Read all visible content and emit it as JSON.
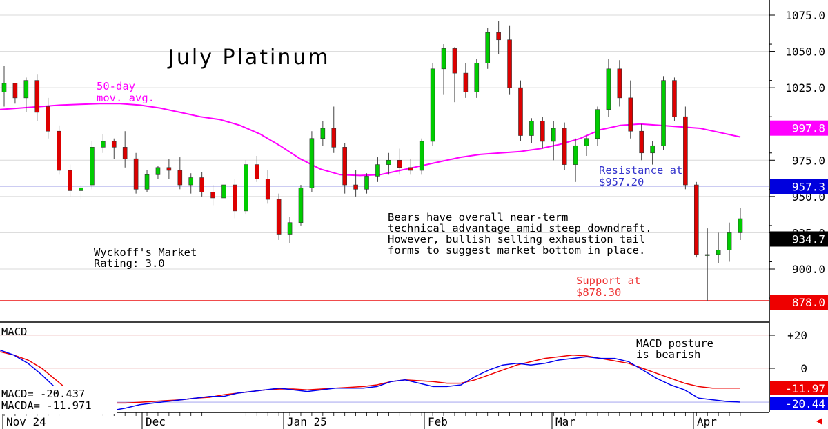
{
  "chart_data": [
    {
      "type": "candlestick",
      "title": "July Platinum",
      "y_axis": {
        "ticks": [
          "1075.0",
          "1050.0",
          "1025.0",
          "975.0",
          "950.0",
          "925.0",
          "900.0"
        ],
        "range": [
          870,
          1082
        ]
      },
      "x_axis": {
        "labels": [
          "Nov 24",
          "Dec",
          "Jan 25",
          "Feb",
          "Mar",
          "Apr"
        ]
      },
      "series": [
        {
          "name": "50-day mov. avg.",
          "color": "#ff00ff",
          "values": [
            1010,
            1011,
            1012,
            1013,
            1013.5,
            1014,
            1014,
            1013,
            1011,
            1008,
            1005,
            1003,
            999,
            993,
            985,
            976,
            969,
            965,
            964.5,
            965,
            968,
            971,
            974,
            977,
            979,
            980,
            981,
            983,
            986,
            990,
            996,
            999,
            1000,
            999,
            998,
            997,
            994,
            991
          ]
        },
        {
          "name": "candles",
          "color_up": "#00cc00",
          "color_down": "#dd0000",
          "candles": [
            [
              1022,
              1040,
              1012,
              1028
            ],
            [
              1028,
              1026,
              1014,
              1018
            ],
            [
              1018,
              1032,
              1008,
              1030
            ],
            [
              1030,
              1034,
              1002,
              1008
            ],
            [
              1012,
              1018,
              990,
              995
            ],
            [
              995,
              999,
              965,
              968
            ],
            [
              968,
              972,
              950,
              954
            ],
            [
              954,
              958,
              948,
              956
            ],
            [
              958,
              988,
              955,
              984
            ],
            [
              984,
              993,
              980,
              988
            ],
            [
              988,
              990,
              976,
              984
            ],
            [
              984,
              995,
              970,
              976
            ],
            [
              976,
              980,
              952,
              955
            ],
            [
              955,
              968,
              953,
              965
            ],
            [
              965,
              971,
              962,
              970
            ],
            [
              970,
              976,
              962,
              968
            ],
            [
              968,
              977,
              955,
              958
            ],
            [
              958,
              966,
              952,
              963
            ],
            [
              963,
              967,
              950,
              953
            ],
            [
              953,
              958,
              944,
              949
            ],
            [
              949,
              960,
              940,
              958
            ],
            [
              958,
              962,
              935,
              940
            ],
            [
              940,
              975,
              938,
              972
            ],
            [
              972,
              978,
              960,
              962
            ],
            [
              962,
              968,
              945,
              948
            ],
            [
              948,
              952,
              920,
              924
            ],
            [
              924,
              936,
              918,
              932
            ],
            [
              932,
              958,
              930,
              956
            ],
            [
              956,
              995,
              953,
              990
            ],
            [
              990,
              1002,
              985,
              997
            ],
            [
              997,
              1012,
              980,
              984
            ],
            [
              984,
              987,
              952,
              958
            ],
            [
              958,
              968,
              950,
              955
            ],
            [
              955,
              966,
              952,
              964
            ],
            [
              964,
              977,
              960,
              972
            ],
            [
              972,
              980,
              965,
              975
            ],
            [
              975,
              983,
              965,
              970
            ],
            [
              970,
              976,
              965,
              968
            ],
            [
              968,
              990,
              965,
              988
            ],
            [
              988,
              1042,
              985,
              1038
            ],
            [
              1038,
              1055,
              1020,
              1052
            ],
            [
              1052,
              1053,
              1015,
              1035
            ],
            [
              1035,
              1042,
              1018,
              1022
            ],
            [
              1022,
              1045,
              1018,
              1042
            ],
            [
              1042,
              1066,
              1038,
              1063
            ],
            [
              1063,
              1071,
              1048,
              1058
            ],
            [
              1058,
              1068,
              1020,
              1025
            ],
            [
              1025,
              1030,
              988,
              992
            ],
            [
              992,
              1004,
              987,
              1002
            ],
            [
              1002,
              1005,
              983,
              988
            ],
            [
              988,
              1002,
              975,
              997
            ],
            [
              997,
              1001,
              968,
              972
            ],
            [
              972,
              990,
              960,
              985
            ],
            [
              985,
              992,
              978,
              990
            ],
            [
              990,
              1012,
              985,
              1010
            ],
            [
              1010,
              1045,
              1005,
              1038
            ],
            [
              1038,
              1044,
              1012,
              1018
            ],
            [
              1018,
              1030,
              990,
              995
            ],
            [
              995,
              1000,
              975,
              980
            ],
            [
              980,
              988,
              972,
              985
            ],
            [
              985,
              1033,
              982,
              1030
            ],
            [
              1030,
              1032,
              1002,
              1005
            ],
            [
              1005,
              1012,
              955,
              958
            ],
            [
              958,
              960,
              908,
              910
            ],
            [
              910,
              928,
              878,
              910
            ],
            [
              910,
              925,
              904,
              913
            ],
            [
              913,
              932,
              905,
              925
            ],
            [
              925,
              942,
              920,
              934.7
            ]
          ]
        }
      ],
      "current_values": [
        {
          "label": "997.8",
          "color": "#ff00ff"
        },
        {
          "label": "957.3",
          "color": "#0000dd"
        },
        {
          "label": "934.7",
          "color": "#000000"
        },
        {
          "label": "878.0",
          "color": "#ee0000"
        }
      ],
      "levels": [
        {
          "name": "Resistance",
          "value": 957.2,
          "color": "#3333cc"
        },
        {
          "name": "Support",
          "value": 878.3,
          "color": "#ee3333"
        }
      ],
      "annotations": {
        "ma_label": [
          "50-day",
          "mov. avg."
        ],
        "resistance_label": [
          "Resistance at",
          "$957.20"
        ],
        "support_label": [
          "Support at",
          "$878.30"
        ],
        "commentary": [
          "Bears have overall near-term",
          "technical advantage amid steep downdraft.",
          "However, bullish selling exhaustion tail",
          "forms to suggest market bottom in place."
        ],
        "rating": [
          "Wyckoff's Market",
          "Rating: 3.0"
        ]
      }
    },
    {
      "type": "line",
      "title": "MACD",
      "y_axis": {
        "ticks": [
          "+20",
          "0"
        ],
        "range": [
          -28,
          24
        ]
      },
      "series": [
        {
          "name": "MACD",
          "color": "#0000ee",
          "values": [
            11,
            8,
            3,
            -4,
            -12,
            -18,
            -22,
            -25,
            -25.5,
            -24,
            -22,
            -21,
            -20,
            -19,
            -18,
            -17,
            -17,
            -15,
            -14,
            -13,
            -12,
            -13,
            -14,
            -13,
            -12,
            -12,
            -12,
            -11,
            -8,
            -7,
            -9,
            -11,
            -11,
            -10,
            -5,
            -1,
            2,
            3,
            2,
            3,
            5,
            6,
            7,
            6,
            6,
            4,
            -1,
            -6,
            -10,
            -13,
            -18,
            -19,
            -20,
            -20.4
          ]
        },
        {
          "name": "MACDA",
          "color": "#ee0000",
          "values": [
            10,
            8,
            5,
            0,
            -7,
            -14,
            -18,
            -20,
            -21,
            -21,
            -20.5,
            -20,
            -19.5,
            -19,
            -18,
            -17.5,
            -16,
            -15,
            -14,
            -13,
            -12.5,
            -12.5,
            -13,
            -12.5,
            -12,
            -11.5,
            -11,
            -10,
            -8,
            -7,
            -7.5,
            -8,
            -9,
            -9,
            -7,
            -4,
            -1,
            2,
            4,
            6,
            7,
            8,
            7.5,
            6,
            4.5,
            3,
            0,
            -3,
            -6,
            -9,
            -11,
            -12,
            -12,
            -11.97
          ]
        }
      ],
      "current_values": [
        {
          "label": "-11.97",
          "color": "#ee0000"
        },
        {
          "label": "-20.44",
          "color": "#0000ee"
        }
      ],
      "readout": {
        "macd": "MACD=  -20.437",
        "macda": "MACDA=  -11.971"
      },
      "annotation": [
        "MACD posture",
        "is bearish"
      ]
    }
  ]
}
